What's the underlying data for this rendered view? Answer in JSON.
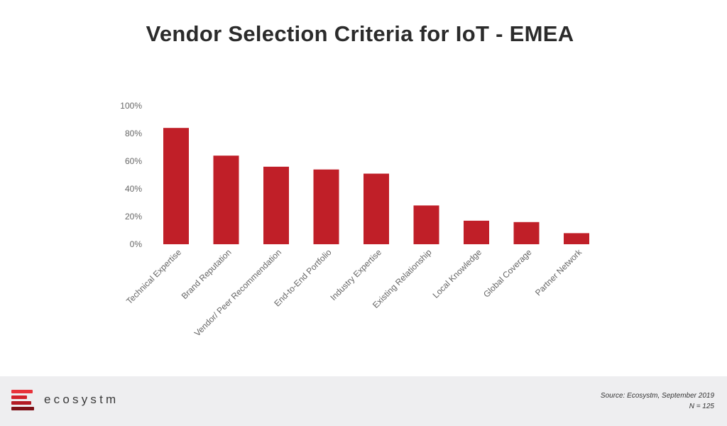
{
  "title": "Vendor Selection Criteria for IoT - EMEA",
  "colors": {
    "bar": "#c01f28",
    "axis_text": "#666666",
    "footer_bg": "#eeeef0",
    "logo_reds": [
      "#e8323a",
      "#d2222b",
      "#b31b24",
      "#7d1218"
    ]
  },
  "chart_data": {
    "type": "bar",
    "categories": [
      "Technical Expertise",
      "Brand Reputation",
      "Vendor/ Peer Recommendation",
      "End-to-End Portfolio",
      "Industry Expertise",
      "Existing Relationship",
      "Local Knowledge",
      "Global Coverage",
      "Partner Network"
    ],
    "values": [
      84,
      64,
      56,
      54,
      51,
      28,
      17,
      16,
      8
    ],
    "yticks": [
      "0%",
      "20%",
      "40%",
      "60%",
      "80%",
      "100%"
    ],
    "ylim": [
      0,
      100
    ],
    "grid": false
  },
  "footer": {
    "brand": "ecosystm",
    "source": "Source: Ecosystm, September 2019",
    "sample": "N = 125"
  }
}
